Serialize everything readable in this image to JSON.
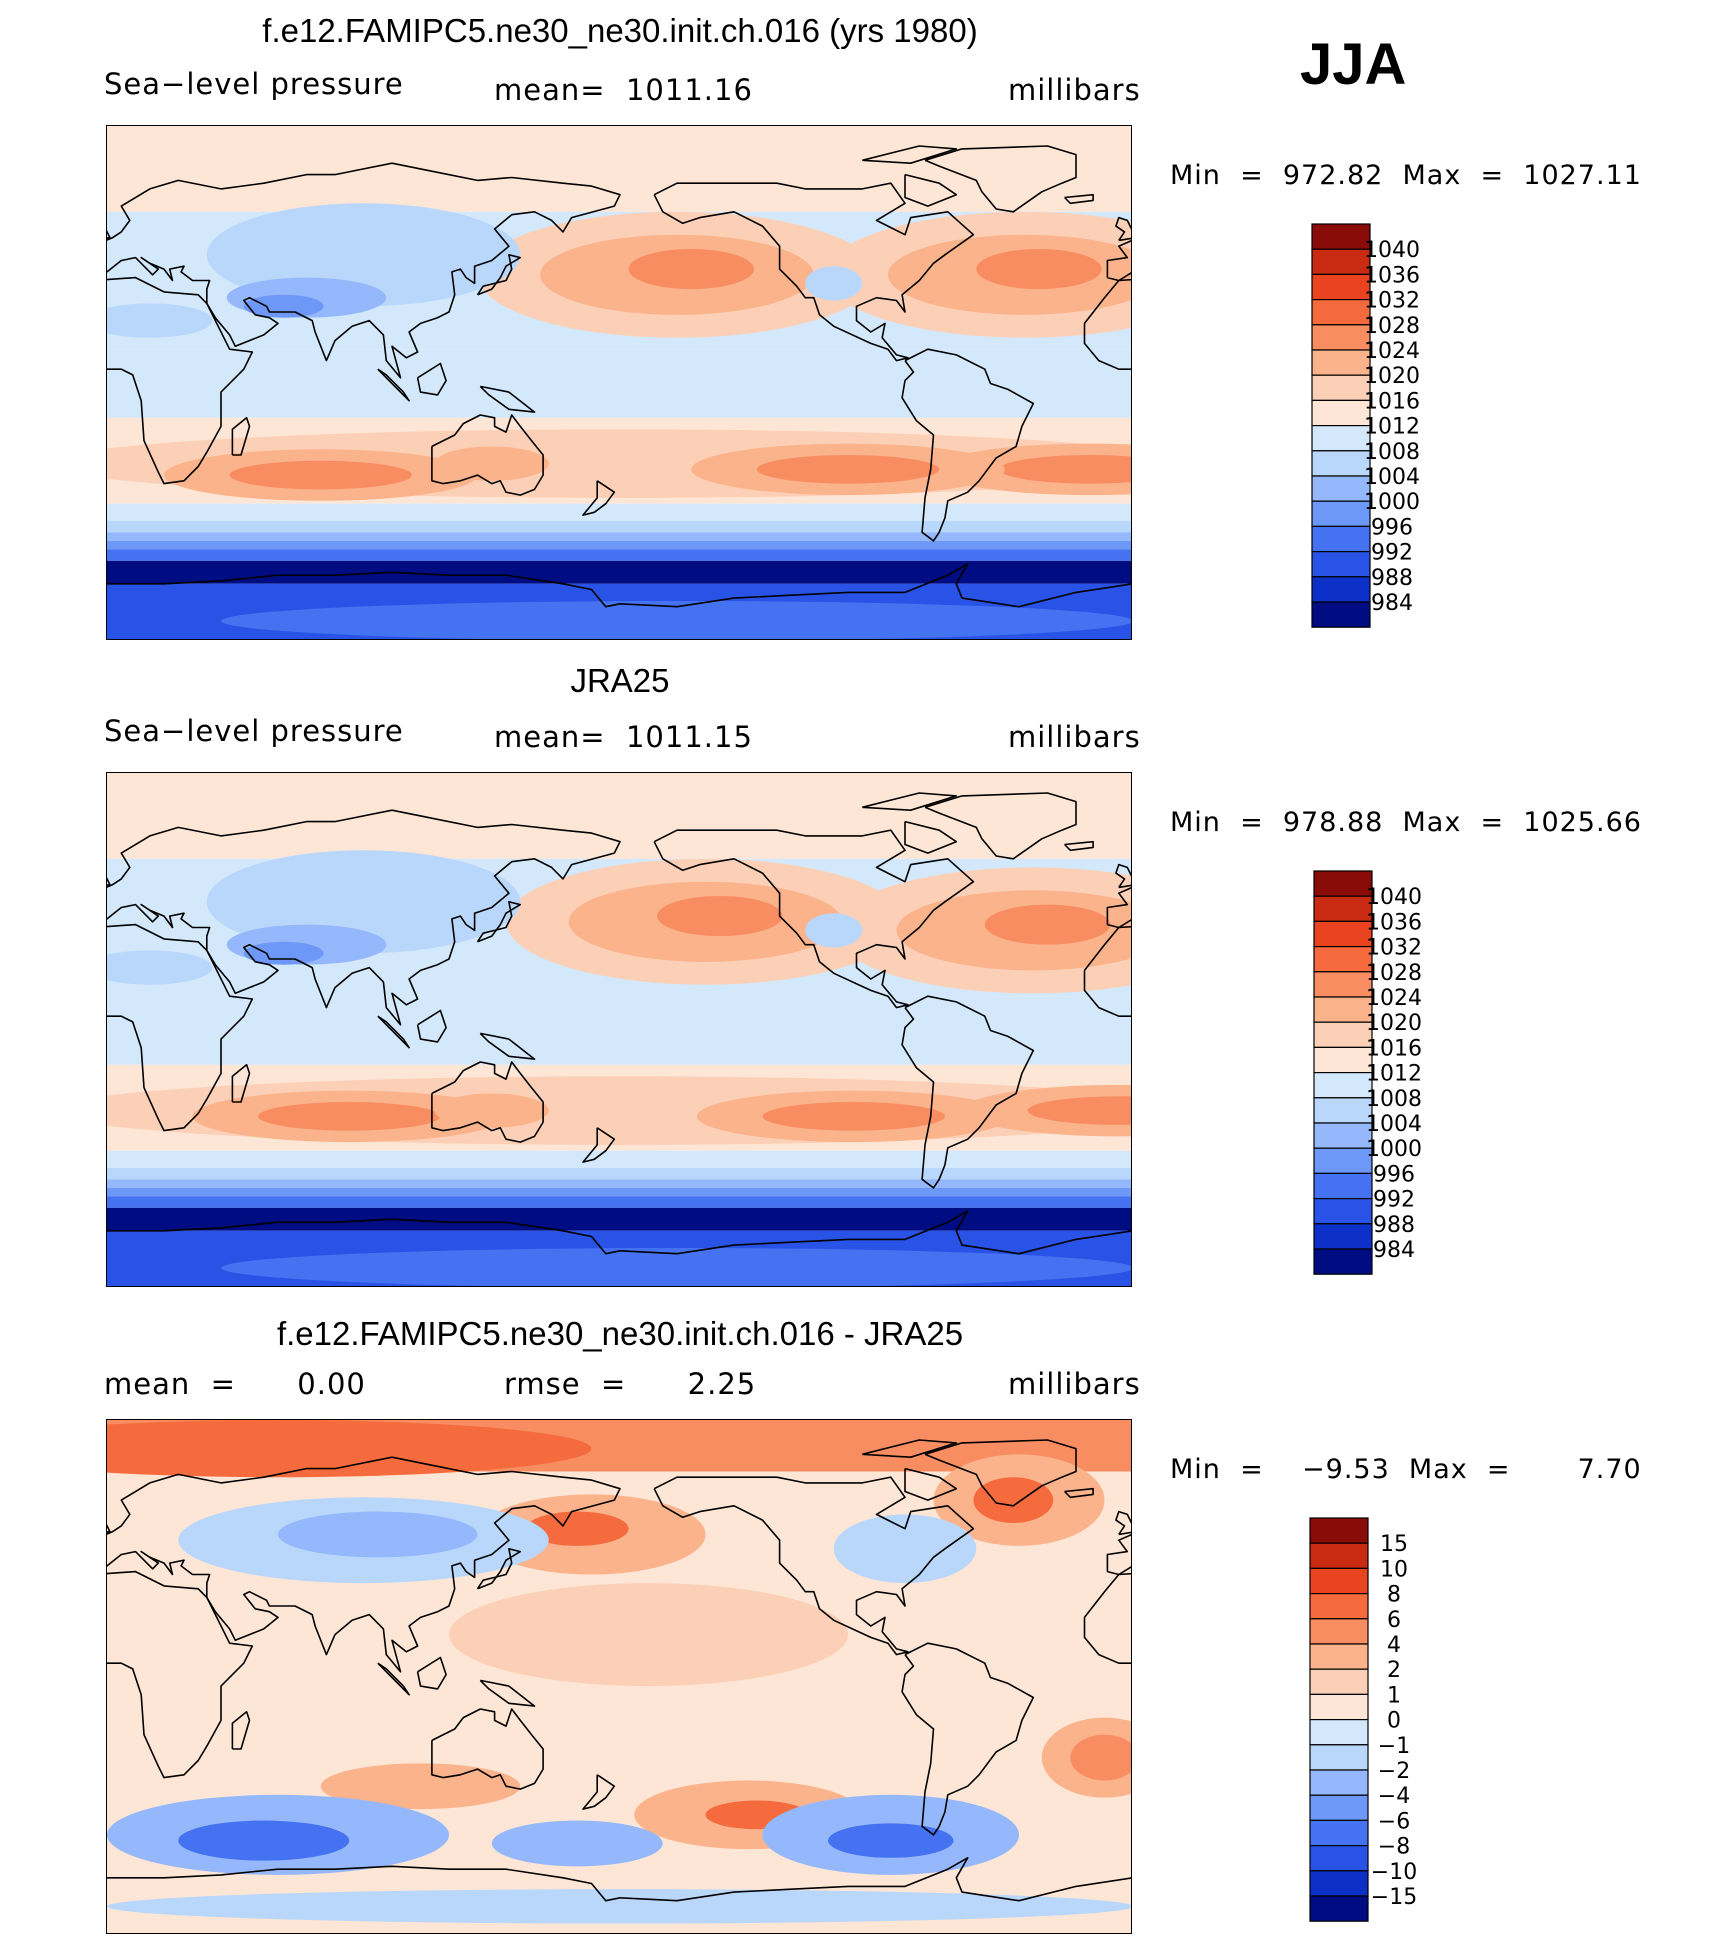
{
  "season": "JJA",
  "panels": [
    {
      "title": "f.e12.FAMIPC5.ne30_ne30.init.ch.016 (yrs 1980)",
      "left_label": "Sea−level pressure",
      "mid_label": "mean=  1011.16",
      "units": "millibars",
      "minmax": "Min  =  972.82  Max  =  1027.11"
    },
    {
      "title": "JRA25",
      "left_label": "Sea−level pressure",
      "mid_label": "mean=  1011.15",
      "units": "millibars",
      "minmax": "Min  =  978.88  Max  =  1025.66"
    },
    {
      "title": "f.e12.FAMIPC5.ne30_ne30.init.ch.016 - JRA25",
      "left_label": "mean  =      0.00",
      "mid_label": "rmse  =      2.25",
      "units": "millibars",
      "minmax": "Min  =    −9.53  Max  =       7.70"
    }
  ],
  "colors": {
    "red": [
      "#fde6d6",
      "#fcd0b6",
      "#fbb38c",
      "#f98d62",
      "#f56b3d",
      "#e9441f",
      "#c82a12",
      "#8a0c08"
    ],
    "blue": [
      "#d3e8fb",
      "#b9d6fb",
      "#94b8fb",
      "#6e98f7",
      "#4572f0",
      "#2853e6",
      "#0d31c8",
      "#000c81"
    ]
  },
  "chart_data": [
    {
      "type": "heatmap",
      "title": "f.e12.FAMIPC5.ne30_ne30.init.ch.016 (yrs 1980)",
      "field": "Sea-level pressure",
      "units": "millibars",
      "mean": 1011.16,
      "min": 972.82,
      "max": 1027.11,
      "colorbar_levels": [
        "1040",
        "1036",
        "1032",
        "1028",
        "1024",
        "1020",
        "1016",
        "1012",
        "1008",
        "1004",
        "1000",
        "996",
        "992",
        "988",
        "984"
      ],
      "features": [
        {
          "name": "North Pacific high",
          "lon": 200,
          "lat": 38,
          "value": 1026
        },
        {
          "name": "Azores high",
          "lon": 322,
          "lat": 38,
          "value": 1026
        },
        {
          "name": "Indian Ocean subtropical high",
          "lon": 75,
          "lat": -32,
          "value": 1026
        },
        {
          "name": "South Pacific high",
          "lon": 260,
          "lat": -30,
          "value": 1021
        },
        {
          "name": "South Atlantic high",
          "lon": 345,
          "lat": -30,
          "value": 1025
        },
        {
          "name": "Asian monsoon low",
          "lon": 65,
          "lat": 28,
          "value": 998
        },
        {
          "name": "Southern Ocean trough",
          "lon": 180,
          "lat": -62,
          "value": 982
        }
      ]
    },
    {
      "type": "heatmap",
      "title": "JRA25",
      "field": "Sea-level pressure",
      "units": "millibars",
      "mean": 1011.15,
      "min": 978.88,
      "max": 1025.66,
      "colorbar_levels": [
        "1040",
        "1036",
        "1032",
        "1028",
        "1024",
        "1020",
        "1016",
        "1012",
        "1008",
        "1004",
        "1000",
        "996",
        "992",
        "988",
        "984"
      ],
      "features": [
        {
          "name": "North Pacific high",
          "lon": 210,
          "lat": 38,
          "value": 1025
        },
        {
          "name": "Azores high",
          "lon": 325,
          "lat": 35,
          "value": 1025
        },
        {
          "name": "Indian Ocean subtropical high",
          "lon": 85,
          "lat": -30,
          "value": 1024
        },
        {
          "name": "South Pacific high",
          "lon": 262,
          "lat": -30,
          "value": 1021
        },
        {
          "name": "Asian monsoon low",
          "lon": 65,
          "lat": 28,
          "value": 1000
        },
        {
          "name": "Southern Ocean trough",
          "lon": 180,
          "lat": -62,
          "value": 984
        }
      ]
    },
    {
      "type": "heatmap",
      "title": "f.e12.FAMIPC5.ne30_ne30.init.ch.016 - JRA25",
      "field": "Sea-level pressure difference",
      "units": "millibars",
      "mean": 0.0,
      "rmse": 2.25,
      "min": -9.53,
      "max": 7.7,
      "colorbar_levels": [
        "15",
        "10",
        "8",
        "6",
        "4",
        "2",
        "1",
        "0",
        "−1",
        "−2",
        "−4",
        "−6",
        "−8",
        "−10",
        "−15"
      ],
      "features": [
        {
          "name": "Arctic positive anomaly",
          "lon": 60,
          "lat": 75,
          "value": 6
        },
        {
          "name": "North Pacific positive anomaly",
          "lon": 170,
          "lat": 50,
          "value": 6
        },
        {
          "name": "Greenland positive anomaly",
          "lon": 320,
          "lat": 65,
          "value": 6
        },
        {
          "name": "South Pacific positive anomaly",
          "lon": 225,
          "lat": -48,
          "value": 6
        },
        {
          "name": "South Atlantic positive anomaly",
          "lon": 350,
          "lat": -25,
          "value": 5
        },
        {
          "name": "Southern Indian Ocean negative anomaly",
          "lon": 60,
          "lat": -55,
          "value": -8
        },
        {
          "name": "Southeast Pacific negative anomaly",
          "lon": 275,
          "lat": -55,
          "value": -8
        },
        {
          "name": "Asian negative anomaly",
          "lon": 90,
          "lat": 45,
          "value": -3
        }
      ]
    }
  ]
}
